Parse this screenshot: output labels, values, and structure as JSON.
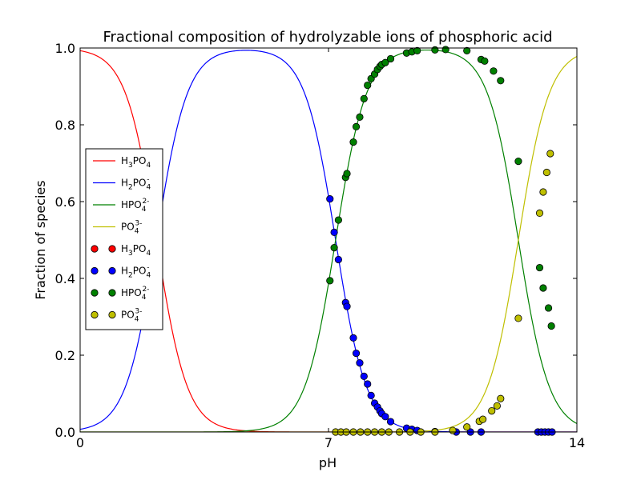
{
  "chart_data": {
    "type": "line",
    "title": "Fractional composition of hydrolyzable ions of phosphoric acid",
    "xlabel": "pH",
    "ylabel": "Fraction of species",
    "xlim": [
      0,
      14
    ],
    "ylim": [
      0,
      1.0
    ],
    "xticks": [
      "0",
      "7",
      "14"
    ],
    "yticks": [
      "0.0",
      "0.2",
      "0.4",
      "0.6",
      "0.8",
      "1.0"
    ],
    "grid": false,
    "legend_position": "center-left",
    "pKa": [
      2.15,
      7.2,
      12.35
    ],
    "series": [
      {
        "key": "h3",
        "species": "H3PO4",
        "color": "#ff0000",
        "kind": "line",
        "points": []
      },
      {
        "key": "h2",
        "species": "H2PO4-",
        "color": "#0000ff",
        "kind": "line",
        "points": []
      },
      {
        "key": "h1",
        "species": "HPO4 2-",
        "color": "#008000",
        "kind": "line",
        "points": []
      },
      {
        "key": "h0",
        "species": "PO4 3-",
        "color": "#bfbf00",
        "kind": "line",
        "points": []
      },
      {
        "key": "h3",
        "species": "H3PO4",
        "color": "#ff0000",
        "kind": "points",
        "points": []
      },
      {
        "key": "h2",
        "species": "H2PO4-",
        "color": "#0000ff",
        "kind": "points",
        "points": [
          [
            7.04,
            0.607
          ],
          [
            7.16,
            0.52
          ],
          [
            7.28,
            0.449
          ],
          [
            7.48,
            0.337
          ],
          [
            7.52,
            0.327
          ],
          [
            7.7,
            0.245
          ],
          [
            7.78,
            0.205
          ],
          [
            7.88,
            0.18
          ],
          [
            8.0,
            0.145
          ],
          [
            8.1,
            0.125
          ],
          [
            8.2,
            0.095
          ],
          [
            8.3,
            0.075
          ],
          [
            8.38,
            0.065
          ],
          [
            8.45,
            0.055
          ],
          [
            8.5,
            0.048
          ],
          [
            8.6,
            0.04
          ],
          [
            8.75,
            0.027
          ],
          [
            9.2,
            0.01
          ],
          [
            9.35,
            0.007
          ],
          [
            9.5,
            0.004
          ],
          [
            10.0,
            0.001
          ],
          [
            10.6,
            0.0
          ],
          [
            11.0,
            0.0
          ],
          [
            11.3,
            0.0
          ],
          [
            12.9,
            0.0
          ],
          [
            13.0,
            0.0
          ],
          [
            13.1,
            0.0
          ],
          [
            13.2,
            0.0
          ],
          [
            13.3,
            0.0
          ]
        ]
      },
      {
        "key": "h1",
        "species": "HPO4 2-",
        "color": "#008000",
        "kind": "points",
        "points": [
          [
            7.04,
            0.394
          ],
          [
            7.16,
            0.48
          ],
          [
            7.28,
            0.552
          ],
          [
            7.48,
            0.663
          ],
          [
            7.52,
            0.673
          ],
          [
            7.7,
            0.755
          ],
          [
            7.78,
            0.795
          ],
          [
            7.88,
            0.82
          ],
          [
            8.0,
            0.868
          ],
          [
            8.1,
            0.903
          ],
          [
            8.2,
            0.92
          ],
          [
            8.3,
            0.932
          ],
          [
            8.38,
            0.944
          ],
          [
            8.45,
            0.952
          ],
          [
            8.5,
            0.957
          ],
          [
            8.6,
            0.962
          ],
          [
            8.75,
            0.972
          ],
          [
            9.2,
            0.987
          ],
          [
            9.35,
            0.99
          ],
          [
            9.5,
            0.993
          ],
          [
            10.0,
            0.995
          ],
          [
            10.3,
            0.996
          ],
          [
            10.9,
            0.993
          ],
          [
            11.3,
            0.97
          ],
          [
            11.4,
            0.966
          ],
          [
            11.65,
            0.94
          ],
          [
            11.85,
            0.915
          ],
          [
            12.35,
            0.705
          ],
          [
            12.95,
            0.428
          ],
          [
            13.05,
            0.375
          ],
          [
            13.2,
            0.323
          ],
          [
            13.28,
            0.276
          ]
        ]
      },
      {
        "key": "h0",
        "species": "PO4 3-",
        "color": "#bfbf00",
        "kind": "points",
        "points": [
          [
            7.2,
            0.0
          ],
          [
            7.35,
            0.0
          ],
          [
            7.5,
            0.0
          ],
          [
            7.7,
            0.0
          ],
          [
            7.9,
            0.0
          ],
          [
            8.1,
            0.0
          ],
          [
            8.3,
            0.0
          ],
          [
            8.5,
            0.0
          ],
          [
            8.7,
            0.0
          ],
          [
            9.0,
            0.0
          ],
          [
            9.3,
            0.0
          ],
          [
            9.6,
            0.0
          ],
          [
            10.0,
            0.0
          ],
          [
            10.5,
            0.004
          ],
          [
            10.9,
            0.013
          ],
          [
            11.25,
            0.028
          ],
          [
            11.35,
            0.033
          ],
          [
            11.6,
            0.055
          ],
          [
            11.75,
            0.068
          ],
          [
            11.85,
            0.087
          ],
          [
            12.35,
            0.296
          ],
          [
            12.95,
            0.57
          ],
          [
            13.05,
            0.625
          ],
          [
            13.15,
            0.676
          ],
          [
            13.25,
            0.725
          ]
        ]
      }
    ]
  }
}
